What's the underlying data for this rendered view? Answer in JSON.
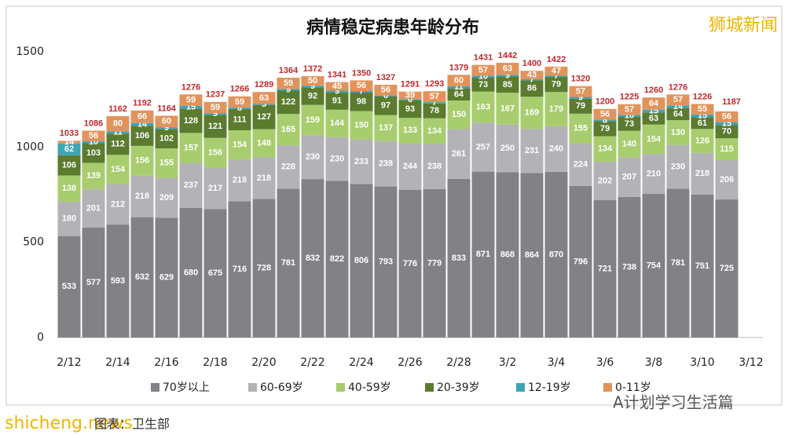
{
  "chart_data": {
    "type": "stacked_bar",
    "title": "病情稳定病患年龄分布",
    "categories": [
      "2/12",
      null,
      "2/14",
      null,
      "2/16",
      null,
      "2/18",
      null,
      "2/20",
      null,
      "2/22",
      null,
      "2/24",
      null,
      "2/26",
      null,
      "2/28",
      null,
      "3/2",
      null,
      "3/4",
      null,
      "3/6",
      null,
      "3/8",
      null,
      "3/10",
      null,
      "3/12"
    ],
    "series": [
      {
        "name": "70岁以上",
        "color": "#828185",
        "values": [
          533,
          577,
          593,
          632,
          629,
          680,
          675,
          716,
          728,
          781,
          832,
          822,
          806,
          793,
          776,
          779,
          833,
          871,
          868,
          864,
          870,
          796,
          721,
          738,
          754,
          781,
          751,
          725,
          null
        ]
      },
      {
        "name": "60-69岁",
        "color": "#b3b2b6",
        "values": [
          180,
          201,
          212,
          218,
          209,
          237,
          217,
          218,
          218,
          228,
          230,
          230,
          233,
          238,
          244,
          238,
          261,
          257,
          250,
          231,
          240,
          224,
          202,
          207,
          210,
          230,
          218,
          206,
          null
        ]
      },
      {
        "name": "40-59岁",
        "color": "#a8cd6e",
        "values": [
          138,
          139,
          154,
          156,
          155,
          157,
          156,
          154,
          148,
          165,
          159,
          144,
          150,
          137,
          133,
          134,
          150,
          163,
          167,
          169,
          179,
          155,
          134,
          140,
          154,
          130,
          126,
          115,
          null
        ]
      },
      {
        "name": "20-39岁",
        "color": "#5b7b2f",
        "values": [
          106,
          103,
          112,
          106,
          102,
          128,
          121,
          111,
          127,
          122,
          92,
          91,
          98,
          97,
          93,
          78,
          64,
          73,
          85,
          86,
          79,
          79,
          79,
          73,
          63,
          64,
          61,
          70,
          null
        ]
      },
      {
        "name": "12-19岁",
        "color": "#3ea4b7",
        "values": [
          62,
          10,
          11,
          14,
          9,
          15,
          9,
          8,
          5,
          9,
          9,
          9,
          7,
          6,
          6,
          7,
          11,
          10,
          9,
          7,
          7,
          9,
          8,
          10,
          15,
          14,
          15,
          15,
          null
        ]
      },
      {
        "name": "0-11岁",
        "color": "#e2935b",
        "values": [
          14,
          56,
          80,
          66,
          60,
          59,
          59,
          59,
          63,
          59,
          50,
          45,
          56,
          56,
          39,
          57,
          60,
          57,
          63,
          43,
          47,
          57,
          56,
          57,
          64,
          57,
          55,
          56,
          null
        ]
      }
    ],
    "totals": [
      1033,
      1086,
      1162,
      1192,
      1164,
      1276,
      1237,
      1266,
      1289,
      1364,
      1372,
      1341,
      1350,
      1327,
      1291,
      1293,
      1379,
      1431,
      1442,
      1400,
      1422,
      1320,
      1200,
      1225,
      1260,
      1276,
      1226,
      1187,
      null
    ],
    "ylim": [
      0,
      1500
    ],
    "yticks": [
      0,
      500,
      1000,
      1500
    ],
    "grid": false,
    "watermark": "狮城新闻",
    "site": "shicheng.news",
    "account": "A计划学习生活篇",
    "source": "图表：卫生部"
  }
}
